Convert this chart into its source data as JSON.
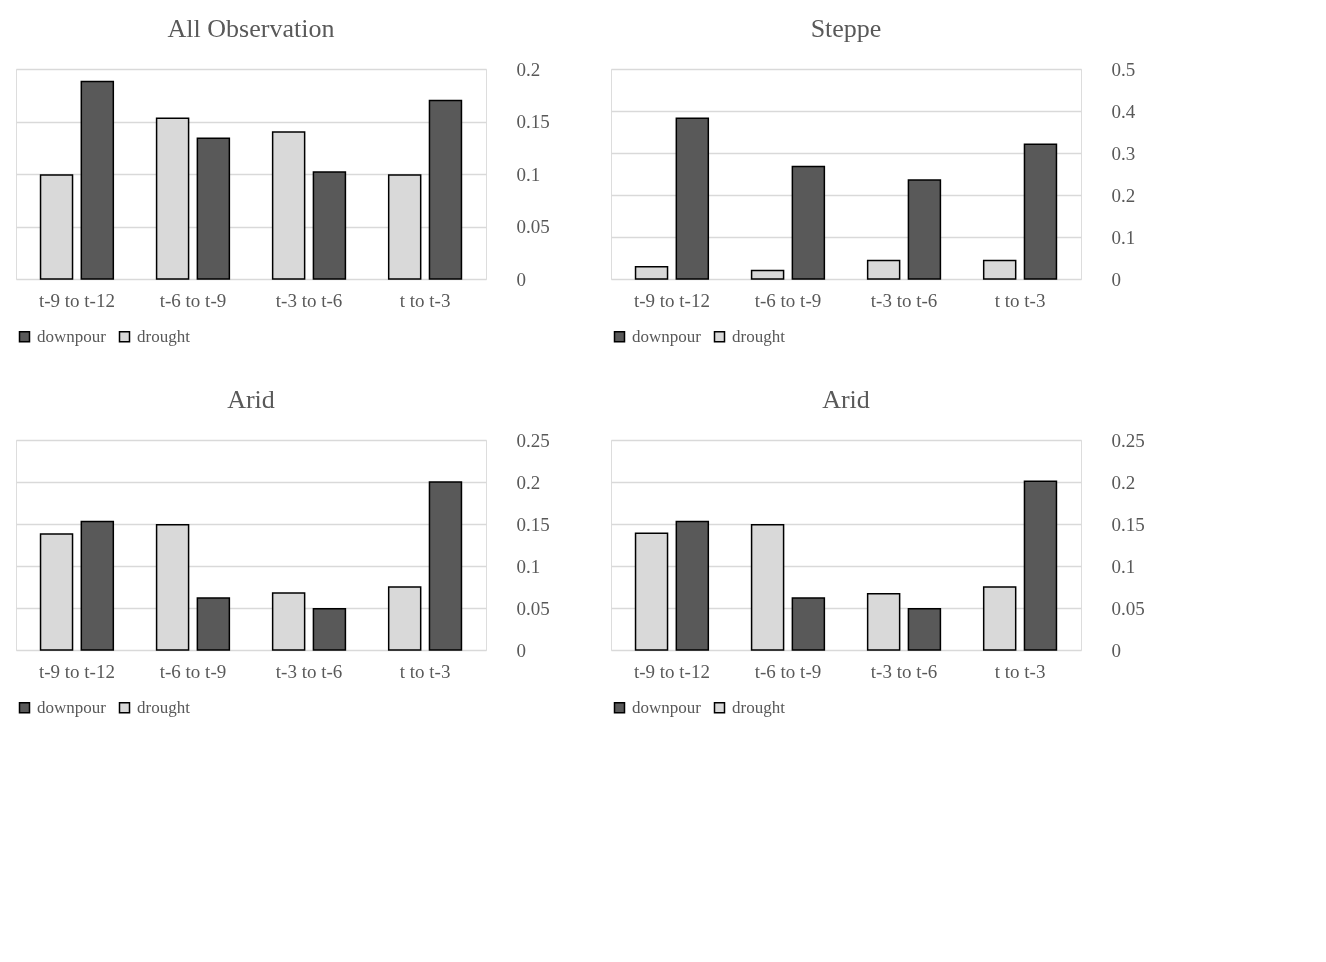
{
  "chart_data": [
    {
      "type": "bar",
      "title": "All Observation",
      "categories": [
        "t-9 to t-12",
        "t-6 to t-9",
        "t-3 to t-6",
        "t to t-3"
      ],
      "series": [
        {
          "name": "downpour",
          "color": "#595959",
          "values": [
            0.188,
            0.134,
            0.102,
            0.17
          ]
        },
        {
          "name": "drought",
          "color": "#d9d9d9",
          "values": [
            0.099,
            0.153,
            0.14,
            0.099
          ]
        }
      ],
      "ylim": [
        0,
        0.2
      ],
      "yticks": [
        0,
        0.05,
        0.1,
        0.15,
        0.2
      ],
      "grid": "y",
      "legend": "bottom"
    },
    {
      "type": "bar",
      "title": "Steppe",
      "categories": [
        "t-9 to t-12",
        "t-6 to t-9",
        "t-3 to t-6",
        "t to t-3"
      ],
      "series": [
        {
          "name": "downpour",
          "color": "#595959",
          "values": [
            0.383,
            0.268,
            0.236,
            0.321
          ]
        },
        {
          "name": "drought",
          "color": "#d9d9d9",
          "values": [
            0.029,
            0.02,
            0.044,
            0.044
          ]
        }
      ],
      "ylim": [
        0,
        0.5
      ],
      "yticks": [
        0,
        0.1,
        0.2,
        0.3,
        0.4,
        0.5
      ],
      "grid": "y",
      "legend": "bottom"
    },
    {
      "type": "bar",
      "title": "Arid",
      "categories": [
        "t-9 to t-12",
        "t-6 to t-9",
        "t-3 to t-6",
        "t to t-3"
      ],
      "series": [
        {
          "name": "downpour",
          "color": "#595959",
          "values": [
            0.153,
            0.062,
            0.049,
            0.2
          ]
        },
        {
          "name": "drought",
          "color": "#d9d9d9",
          "values": [
            0.138,
            0.149,
            0.068,
            0.075
          ]
        }
      ],
      "ylim": [
        0,
        0.25
      ],
      "yticks": [
        0,
        0.05,
        0.1,
        0.15,
        0.2,
        0.25
      ],
      "grid": "y",
      "legend": "bottom"
    },
    {
      "type": "bar",
      "title": "Arid",
      "categories": [
        "t-9 to t-12",
        "t-6 to t-9",
        "t-3 to t-6",
        "t to t-3"
      ],
      "series": [
        {
          "name": "downpour",
          "color": "#595959",
          "values": [
            0.153,
            0.062,
            0.049,
            0.201
          ]
        },
        {
          "name": "drought",
          "color": "#d9d9d9",
          "values": [
            0.139,
            0.149,
            0.067,
            0.075
          ]
        }
      ],
      "ylim": [
        0,
        0.25
      ],
      "yticks": [
        0,
        0.05,
        0.1,
        0.15,
        0.2,
        0.25
      ],
      "grid": "y",
      "legend": "bottom"
    }
  ]
}
